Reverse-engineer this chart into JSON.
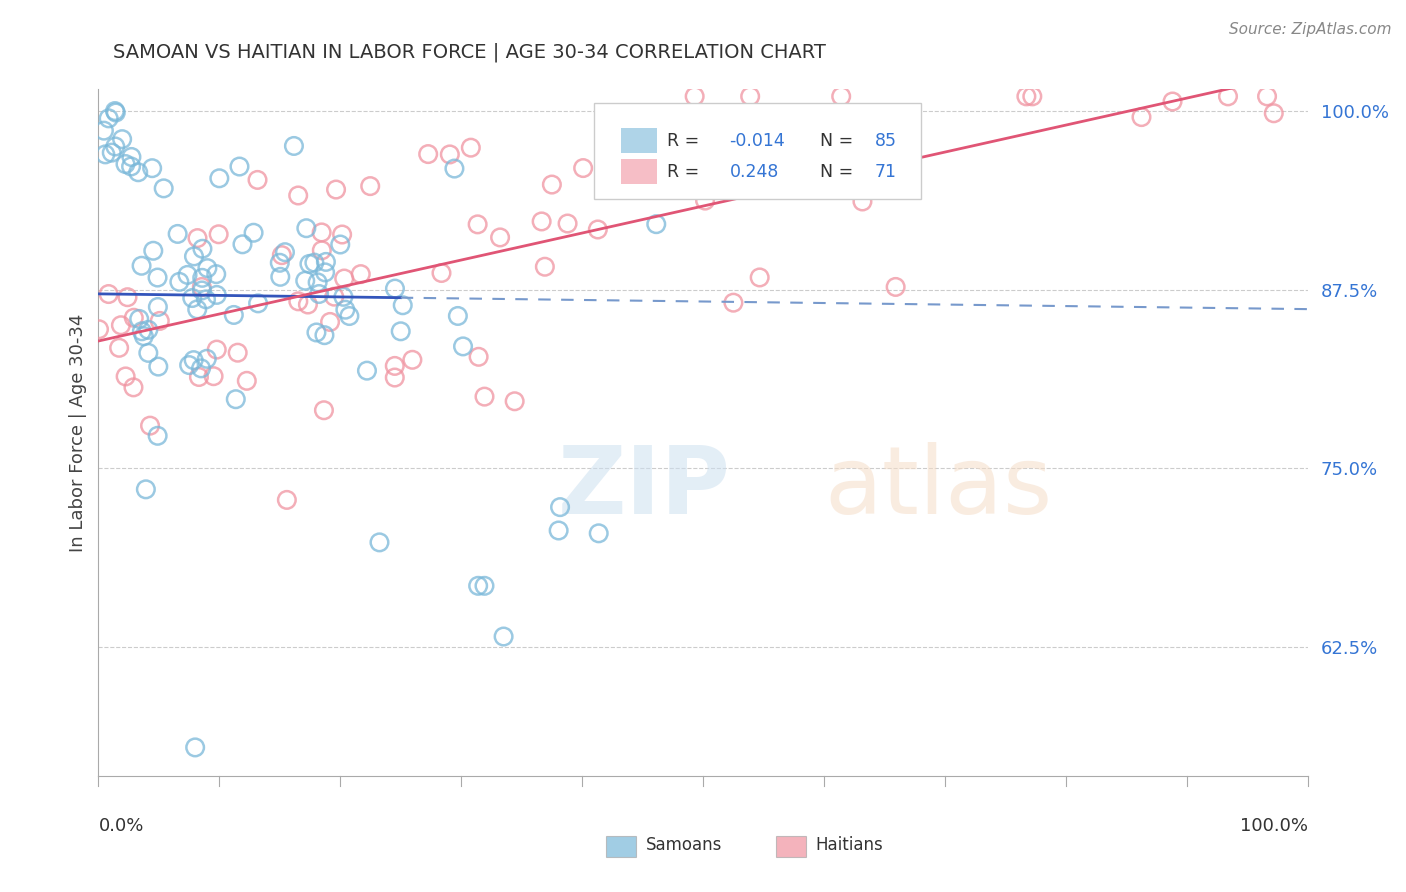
{
  "title": "SAMOAN VS HAITIAN IN LABOR FORCE | AGE 30-34 CORRELATION CHART",
  "source_text": "Source: ZipAtlas.com",
  "ylabel": "In Labor Force | Age 30-34",
  "yticks_pct": [
    62.5,
    75.0,
    87.5,
    100.0
  ],
  "ytick_labels": [
    "62.5%",
    "75.0%",
    "87.5%",
    "100.0%"
  ],
  "xlim": [
    0.0,
    1.0
  ],
  "ylim": [
    0.535,
    1.015
  ],
  "samoan_color": "#7ab8d9",
  "haitian_color": "#f093a0",
  "samoan_R": -0.014,
  "samoan_N": 85,
  "haitian_R": 0.248,
  "haitian_N": 71,
  "r_color": "#3575d4",
  "legend_samoans": "Samoans",
  "legend_haitians": "Haitians",
  "blue_line_color": "#3355bb",
  "blue_dash_color": "#7799cc",
  "pink_line_color": "#e05575",
  "grid_color": "#cccccc",
  "title_color": "#333333",
  "source_color": "#888888",
  "tick_color": "#3575d4"
}
